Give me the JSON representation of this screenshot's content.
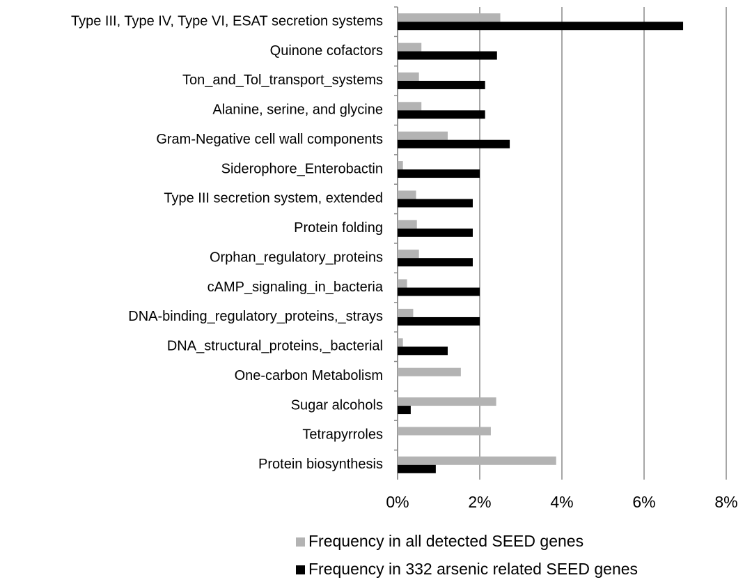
{
  "chart_data": {
    "type": "hbar",
    "categories": [
      "Type III, Type IV, Type VI, ESAT secretion systems",
      "Quinone cofactors",
      "Ton_and_Tol_transport_systems",
      "Alanine, serine, and glycine",
      "Gram-Negative cell wall components",
      "Siderophore_Enterobactin",
      "Type III secretion system, extended",
      "Protein folding",
      "Orphan_regulatory_proteins",
      "cAMP_signaling_in_bacteria",
      "DNA-binding_regulatory_proteins,_strays",
      "DNA_structural_proteins,_bacterial",
      "One-carbon Metabolism",
      "Sugar alcohols",
      "Tetrapyrroles",
      "Protein biosynthesis"
    ],
    "series": [
      {
        "name": "Frequency in all detected SEED genes",
        "color": "#b3b3b3",
        "values": [
          2.5,
          0.58,
          0.52,
          0.58,
          1.22,
          0.13,
          0.45,
          0.47,
          0.52,
          0.23,
          0.38,
          0.13,
          1.54,
          2.4,
          2.27,
          3.86
        ]
      },
      {
        "name": "Frequency in 332 arsenic related SEED genes",
        "color": "#000000",
        "values": [
          6.95,
          2.42,
          2.13,
          2.13,
          2.73,
          2.0,
          1.83,
          1.83,
          1.83,
          2.0,
          2.0,
          1.22,
          0,
          0.32,
          0,
          0.93
        ]
      }
    ],
    "xlim": [
      0,
      8
    ],
    "xticks": [
      {
        "value": 0,
        "label": "0%"
      },
      {
        "value": 2,
        "label": "2%"
      },
      {
        "value": 4,
        "label": "4%"
      },
      {
        "value": 6,
        "label": "6%"
      },
      {
        "value": 8,
        "label": "8%"
      }
    ],
    "grid": true,
    "legend": "bottom"
  }
}
